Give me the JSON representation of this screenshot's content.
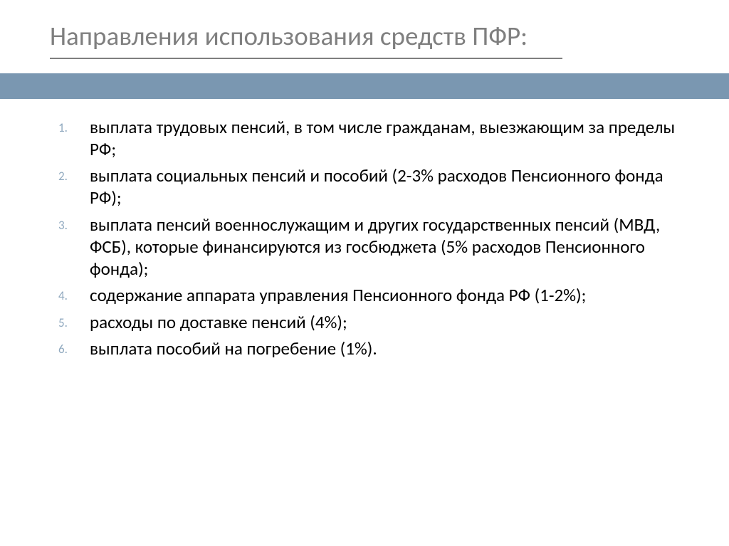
{
  "title": "Направления использования средств ПФР:",
  "colors": {
    "title_color": "#7f7f7f",
    "underline_color": "#7f7f7f",
    "accent_bar": "#7a97b1",
    "list_number_color": "#90a9bf",
    "body_text_color": "#000000",
    "background": "#ffffff"
  },
  "typography": {
    "title_fontsize": 37,
    "body_fontsize": 25,
    "number_fontsize": 17
  },
  "items": [
    "выплата трудовых пенсий, в том числе гражданам, выезжающим за пределы РФ;",
    "выплата социальных пенсий и пособий (2-3% расходов Пенсионного фонда РФ);",
    "выплата пенсий военнослужащим и других государственных пенсий (МВД, ФСБ), которые финансируются из госбюджета (5% расходов Пенсионного фонда);",
    "содержание аппарата управления Пенсионного фонда РФ (1-2%);",
    " расходы по доставке пенсий (4%);",
    "выплата пособий на погребение (1%)."
  ]
}
